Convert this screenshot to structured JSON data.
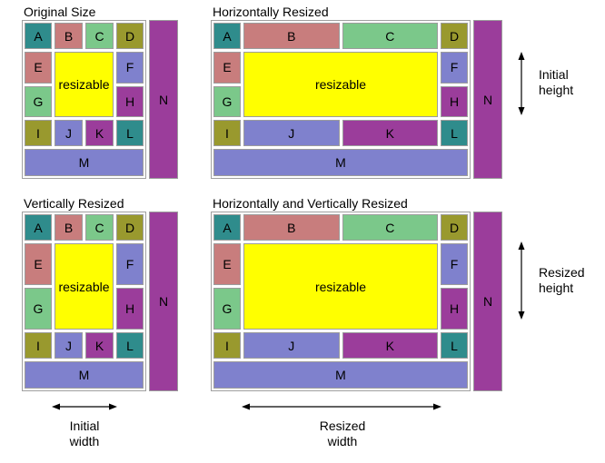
{
  "colors": {
    "teal": "#2f8c8c",
    "rose": "#c87d7d",
    "green": "#7bc88a",
    "olive": "#99992e",
    "periwinkle": "#7f81cd",
    "purple": "#9b3d9b",
    "yellow": "#ffff00",
    "cell_border": "#9c9c9c",
    "panel_border": "#a0a0a0",
    "background": "#ffffff",
    "text": "#000000",
    "arrow": "#000000"
  },
  "panels": [
    {
      "title": "Original Size",
      "resized_horizontally": false,
      "resized_vertically": false
    },
    {
      "title": "Horizontally Resized",
      "resized_horizontally": true,
      "resized_vertically": false
    },
    {
      "title": "Vertically Resized",
      "resized_horizontally": false,
      "resized_vertically": true
    },
    {
      "title": "Horizontally and Vertically Resized",
      "resized_horizontally": true,
      "resized_vertically": true
    }
  ],
  "blocks": [
    {
      "label": "A",
      "color": "teal",
      "col": "1",
      "row": "1"
    },
    {
      "label": "B",
      "color": "rose",
      "col": "2",
      "row": "1"
    },
    {
      "label": "C",
      "color": "green",
      "col": "3",
      "row": "1"
    },
    {
      "label": "D",
      "color": "olive",
      "col": "4",
      "row": "1"
    },
    {
      "label": "E",
      "color": "rose",
      "col": "1",
      "row": "2"
    },
    {
      "label": "resizable",
      "color": "yellow",
      "col": "2 / 4",
      "row": "2 / 4"
    },
    {
      "label": "F",
      "color": "periwinkle",
      "col": "4",
      "row": "2"
    },
    {
      "label": "G",
      "color": "green",
      "col": "1",
      "row": "3"
    },
    {
      "label": "H",
      "color": "purple",
      "col": "4",
      "row": "3"
    },
    {
      "label": "I",
      "color": "olive",
      "col": "1",
      "row": "4"
    },
    {
      "label": "J",
      "color": "periwinkle",
      "col": "2",
      "row": "4"
    },
    {
      "label": "K",
      "color": "purple",
      "col": "3",
      "row": "4"
    },
    {
      "label": "L",
      "color": "teal",
      "col": "4",
      "row": "4"
    },
    {
      "label": "M",
      "color": "periwinkle",
      "col": "1 / 5",
      "row": "5"
    }
  ],
  "side_block": {
    "label": "N",
    "color": "purple"
  },
  "annotations": {
    "initial_height": "Initial height",
    "resized_height": "Resized height",
    "initial_width": "Initial width",
    "resized_width": "Resized width"
  }
}
